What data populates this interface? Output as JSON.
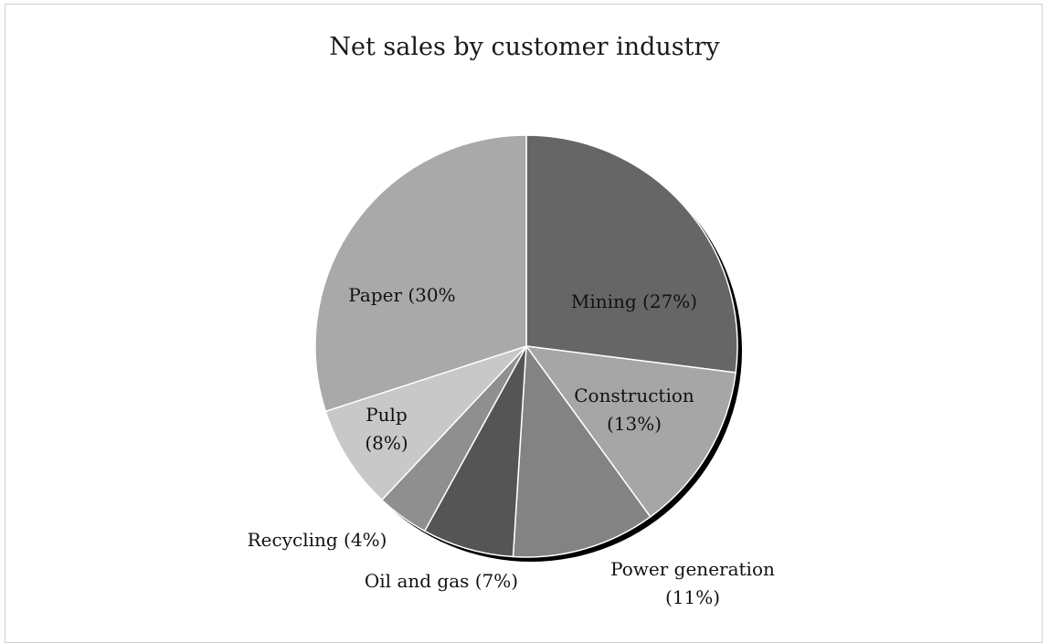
{
  "chart_data": {
    "type": "pie",
    "title": "Net sales by customer industry",
    "slices": [
      {
        "label": "Mining (27%)",
        "label_lines": [
          "Mining (27%)"
        ],
        "value": 27,
        "color": "#666666"
      },
      {
        "label": "Construction (13%)",
        "label_lines": [
          "Construction",
          "(13%)"
        ],
        "value": 13,
        "color": "#a6a6a6"
      },
      {
        "label": "Power generation (11%)",
        "label_lines": [
          "Power generation",
          "(11%)"
        ],
        "value": 11,
        "color": "#838383"
      },
      {
        "label": "Oil and gas (7%)",
        "label_lines": [
          "Oil and gas (7%)"
        ],
        "value": 7,
        "color": "#555555"
      },
      {
        "label": "Recycling (4%)",
        "label_lines": [
          "Recycling (4%)"
        ],
        "value": 4,
        "color": "#8f8f8f"
      },
      {
        "label": "Pulp (8%)",
        "label_lines": [
          "Pulp",
          "(8%)"
        ],
        "value": 8,
        "color": "#c8c8c8"
      },
      {
        "label": "Paper (30%",
        "label_lines": [
          "Paper (30%"
        ],
        "value": 30,
        "color": "#a9a9a9"
      }
    ],
    "start_angle": "12 o'clock",
    "direction": "clockwise",
    "legend": "none",
    "data_labels": true
  }
}
